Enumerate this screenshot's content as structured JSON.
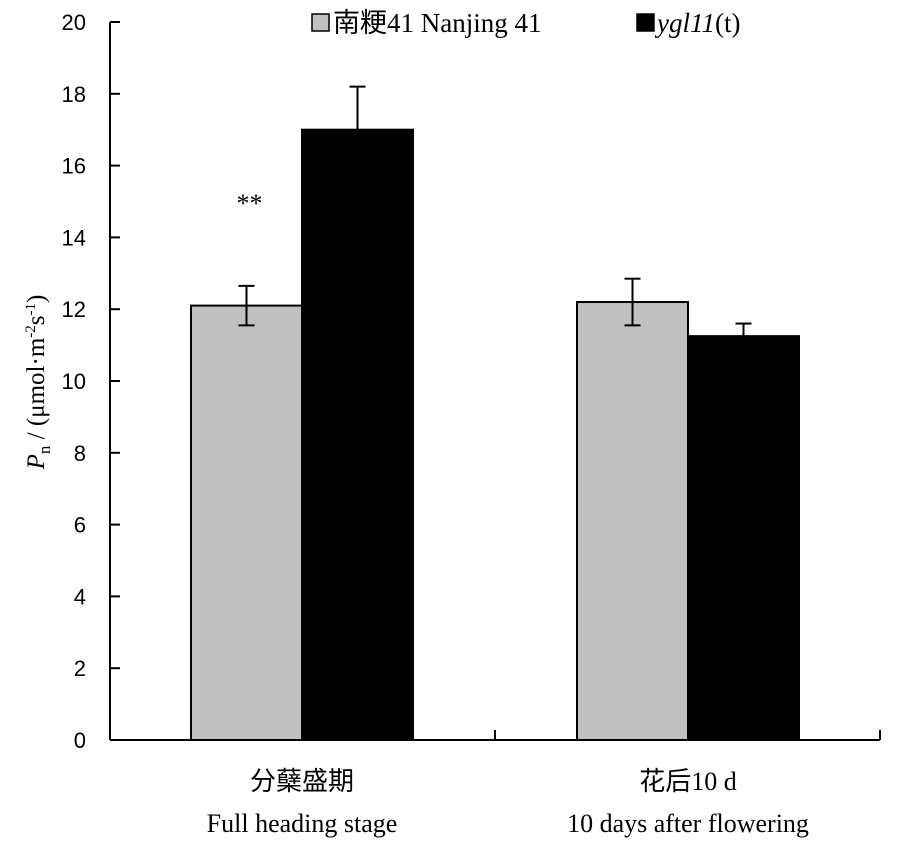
{
  "chart_data": {
    "type": "bar",
    "categories": [
      {
        "zh": "分蘖盛期",
        "en": "Full heading stage"
      },
      {
        "zh": "花后10 d",
        "en": "10 days after flowering"
      }
    ],
    "series": [
      {
        "name": "南粳41 Nanjing 41",
        "color": "#c0c0c0",
        "values": [
          12.1,
          12.2
        ],
        "errors": [
          0.55,
          0.65
        ]
      },
      {
        "name_prefix": "",
        "name_italic": "ygl11",
        "name_suffix": "(t)",
        "color": "#000000",
        "values": [
          17.0,
          11.25
        ],
        "errors": [
          1.2,
          0.35
        ]
      }
    ],
    "ylabel": {
      "P": "P",
      "sub": "n",
      "rest": " / (μmol·m",
      "sup1": "-2",
      "mid": "s",
      "sup2": "-1",
      "end": ")"
    },
    "ylim": [
      0,
      20
    ],
    "yticks": [
      "0",
      "2",
      "4",
      "6",
      "8",
      "10",
      "12",
      "14",
      "16",
      "18",
      "20"
    ],
    "annotations": [
      {
        "category_index": 0,
        "series_index": 0,
        "text": "**"
      }
    ],
    "legend_position": "top",
    "grid": false
  }
}
